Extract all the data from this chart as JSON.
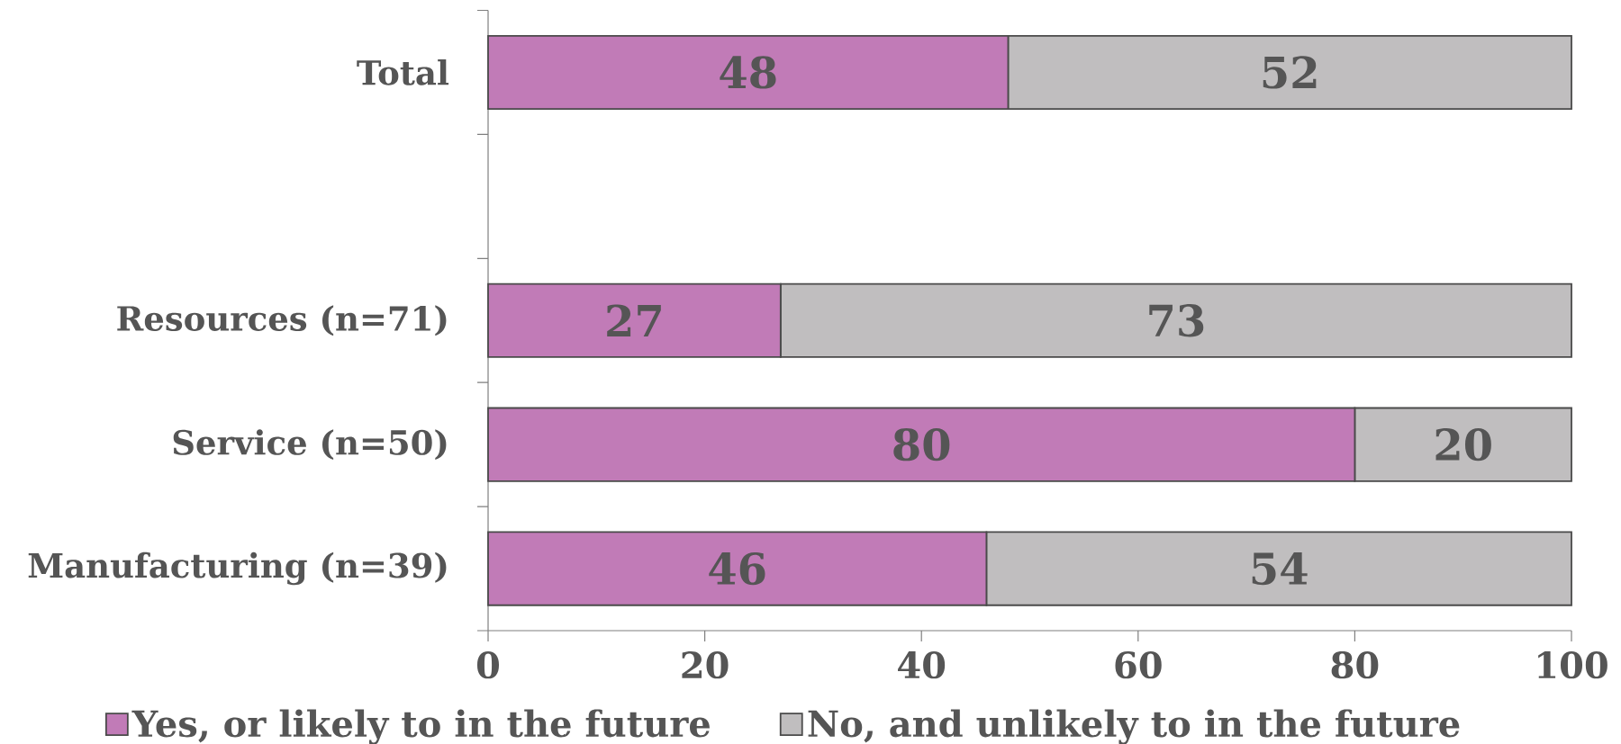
{
  "chart_data": {
    "type": "bar",
    "orientation": "horizontal",
    "stacked": true,
    "categories": [
      "Total",
      null,
      "Resources (n=71)",
      "Service (n=50)",
      "Manufacturing (n=39)"
    ],
    "series": [
      {
        "name": "Yes, or likely to in the future",
        "color": "#c17bb7",
        "values": [
          48,
          null,
          27,
          80,
          46
        ]
      },
      {
        "name": "No, and unlikely to in the future",
        "color": "#c0bebf",
        "values": [
          52,
          null,
          73,
          20,
          54
        ]
      }
    ],
    "xlim": [
      0,
      100
    ],
    "xticks": [
      0,
      20,
      40,
      60,
      80,
      100
    ],
    "data_labels": true,
    "legend": "bottom"
  }
}
